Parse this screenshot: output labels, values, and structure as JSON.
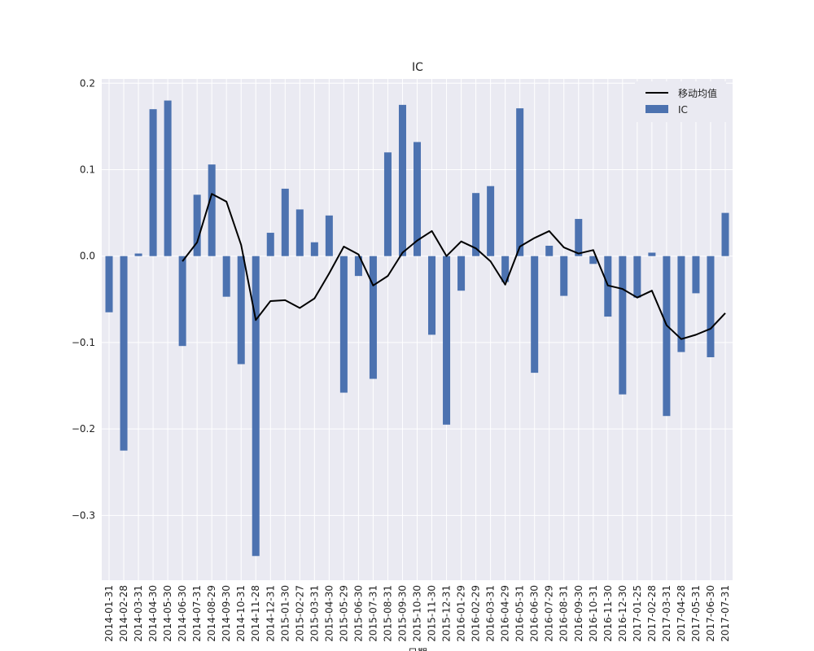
{
  "chart_data": {
    "type": "bar",
    "title": "IC",
    "xlabel": "日期",
    "ylabel": "",
    "ylim": [
      -0.375,
      0.205
    ],
    "yticks": [
      0.2,
      0.1,
      0.0,
      -0.1,
      -0.2,
      -0.3
    ],
    "ytick_labels": [
      "0.2",
      "0.1",
      "0.0",
      "−0.1",
      "−0.2",
      "−0.3"
    ],
    "grid": true,
    "legend_position": "top-right",
    "categories": [
      "2014-01-31",
      "2014-02-28",
      "2014-03-31",
      "2014-04-30",
      "2014-05-30",
      "2014-06-30",
      "2014-07-31",
      "2014-08-29",
      "2014-09-30",
      "2014-10-31",
      "2014-11-28",
      "2014-12-31",
      "2015-01-30",
      "2015-02-27",
      "2015-03-31",
      "2015-04-30",
      "2015-05-29",
      "2015-06-30",
      "2015-07-31",
      "2015-08-31",
      "2015-09-30",
      "2015-10-30",
      "2015-11-30",
      "2015-12-31",
      "2016-01-29",
      "2016-02-29",
      "2016-03-31",
      "2016-04-29",
      "2016-05-31",
      "2016-06-30",
      "2016-07-29",
      "2016-08-31",
      "2016-09-30",
      "2016-10-31",
      "2016-11-30",
      "2016-12-30",
      "2017-01-25",
      "2017-02-28",
      "2017-03-31",
      "2017-04-28",
      "2017-05-31",
      "2017-06-30",
      "2017-07-31"
    ],
    "series": [
      {
        "name": "IC",
        "type": "bar",
        "color": "#4C72B0",
        "values": [
          -0.065,
          -0.225,
          0.003,
          0.17,
          0.18,
          -0.104,
          0.071,
          0.106,
          -0.047,
          -0.125,
          -0.347,
          0.027,
          0.078,
          0.054,
          0.016,
          0.047,
          -0.158,
          -0.023,
          -0.142,
          0.12,
          0.175,
          0.132,
          -0.091,
          -0.195,
          -0.04,
          0.073,
          0.081,
          -0.03,
          0.171,
          -0.135,
          0.012,
          -0.046,
          0.043,
          -0.009,
          -0.07,
          -0.16,
          -0.048,
          0.004,
          -0.185,
          -0.111,
          -0.043,
          -0.117,
          0.05
        ]
      },
      {
        "name": "移动均值",
        "type": "line",
        "color": "#000000",
        "values": [
          null,
          null,
          null,
          null,
          null,
          -0.006,
          0.016,
          0.072,
          0.063,
          0.013,
          -0.074,
          -0.052,
          -0.051,
          -0.06,
          -0.049,
          -0.02,
          0.011,
          0.002,
          -0.034,
          -0.023,
          0.004,
          0.018,
          0.029,
          0.0,
          0.017,
          0.009,
          -0.006,
          -0.033,
          0.011,
          0.021,
          0.029,
          0.01,
          0.003,
          0.007,
          -0.034,
          -0.038,
          -0.048,
          -0.04,
          -0.08,
          -0.096,
          -0.091,
          -0.084,
          -0.066
        ]
      }
    ],
    "legend": [
      "移动均值",
      "IC"
    ]
  },
  "colors": {
    "axes_background": "#EAEAF2",
    "grid": "#FFFFFF",
    "bar": "#4C72B0",
    "line": "#000000"
  }
}
